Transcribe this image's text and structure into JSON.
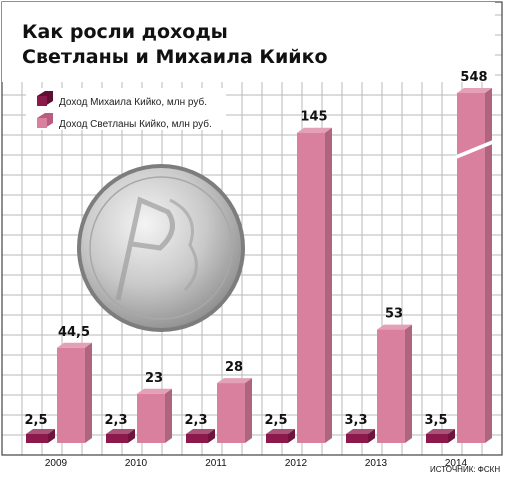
{
  "chart_data": {
    "type": "bar",
    "title_line1": "Как росли доходы",
    "title_line2": "Светланы и Михаила Кийко",
    "categories": [
      "2009",
      "2010",
      "2011",
      "2012",
      "2013",
      "2014"
    ],
    "series": [
      {
        "name": "Доход Михаила Кийко, млн руб.",
        "values": [
          2.5,
          2.3,
          2.3,
          2.5,
          3.3,
          3.5
        ],
        "labels": [
          "2,5",
          "2,3",
          "2,3",
          "2,5",
          "3,3",
          "3,5"
        ],
        "color": "#8b1a4a"
      },
      {
        "name": "Доход Светланы Кийко, млн руб.",
        "values": [
          44.5,
          23,
          28,
          145,
          53,
          548
        ],
        "labels": [
          "44,5",
          "23",
          "28",
          "145",
          "53",
          "548"
        ],
        "color": "#d9809f"
      }
    ],
    "axis_break": "2014",
    "source": "ИСТОЧНИК: ФСКН",
    "grid": true,
    "legend_position": "top-left"
  }
}
